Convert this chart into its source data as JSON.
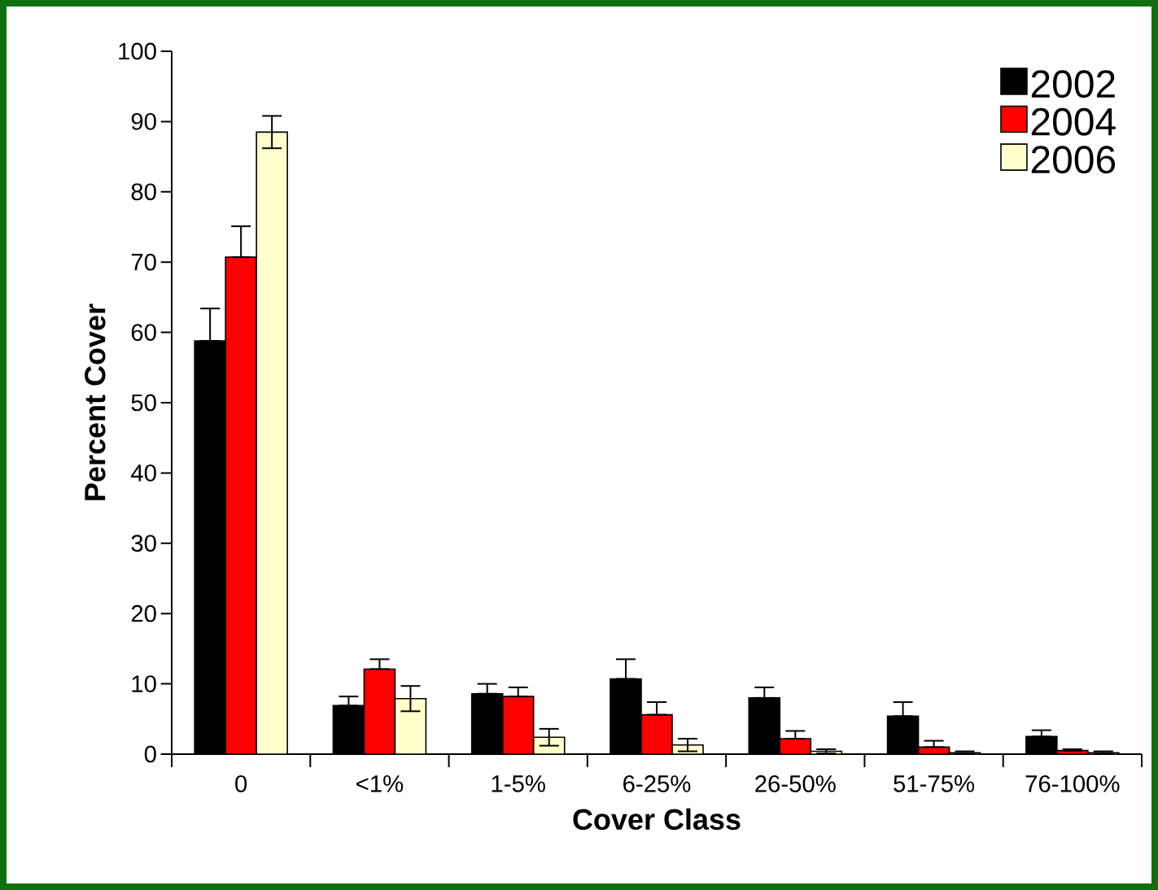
{
  "chart_data": {
    "type": "bar",
    "xlabel": "Cover Class",
    "ylabel": "Percent Cover",
    "categories": [
      "0",
      "<1%",
      "1-5%",
      "6-25%",
      "26-50%",
      "51-75%",
      "76-100%"
    ],
    "series": [
      {
        "name": "2002",
        "color": "#000000",
        "values": [
          58.8,
          6.9,
          8.6,
          10.7,
          8.0,
          5.4,
          2.5
        ],
        "errors": [
          [
            58.8,
            63.4
          ],
          [
            6.9,
            8.2
          ],
          [
            8.6,
            10.0
          ],
          [
            10.7,
            13.5
          ],
          [
            8.0,
            9.5
          ],
          [
            5.4,
            7.4
          ],
          [
            2.5,
            3.4
          ]
        ]
      },
      {
        "name": "2004",
        "color": "#ff0000",
        "values": [
          70.7,
          12.1,
          8.2,
          5.6,
          2.2,
          1.0,
          0.5
        ],
        "errors": [
          [
            70.7,
            75.1
          ],
          [
            12.1,
            13.5
          ],
          [
            8.2,
            9.5
          ],
          [
            5.6,
            7.4
          ],
          [
            2.2,
            3.3
          ],
          [
            1.0,
            1.9
          ],
          [
            0.5,
            0.7
          ]
        ]
      },
      {
        "name": "2006",
        "color": "#ffffcc",
        "values": [
          88.5,
          7.9,
          2.4,
          1.3,
          0.4,
          0.2,
          0.2
        ],
        "errors": [
          2.3,
          1.8,
          1.2,
          0.9,
          0.3,
          0.2,
          0.2
        ]
      }
    ],
    "ylim": [
      0,
      100
    ],
    "yticks": [
      0,
      10,
      20,
      30,
      40,
      50,
      60,
      70,
      80,
      90,
      100
    ],
    "legend": "top right",
    "grid": false
  }
}
